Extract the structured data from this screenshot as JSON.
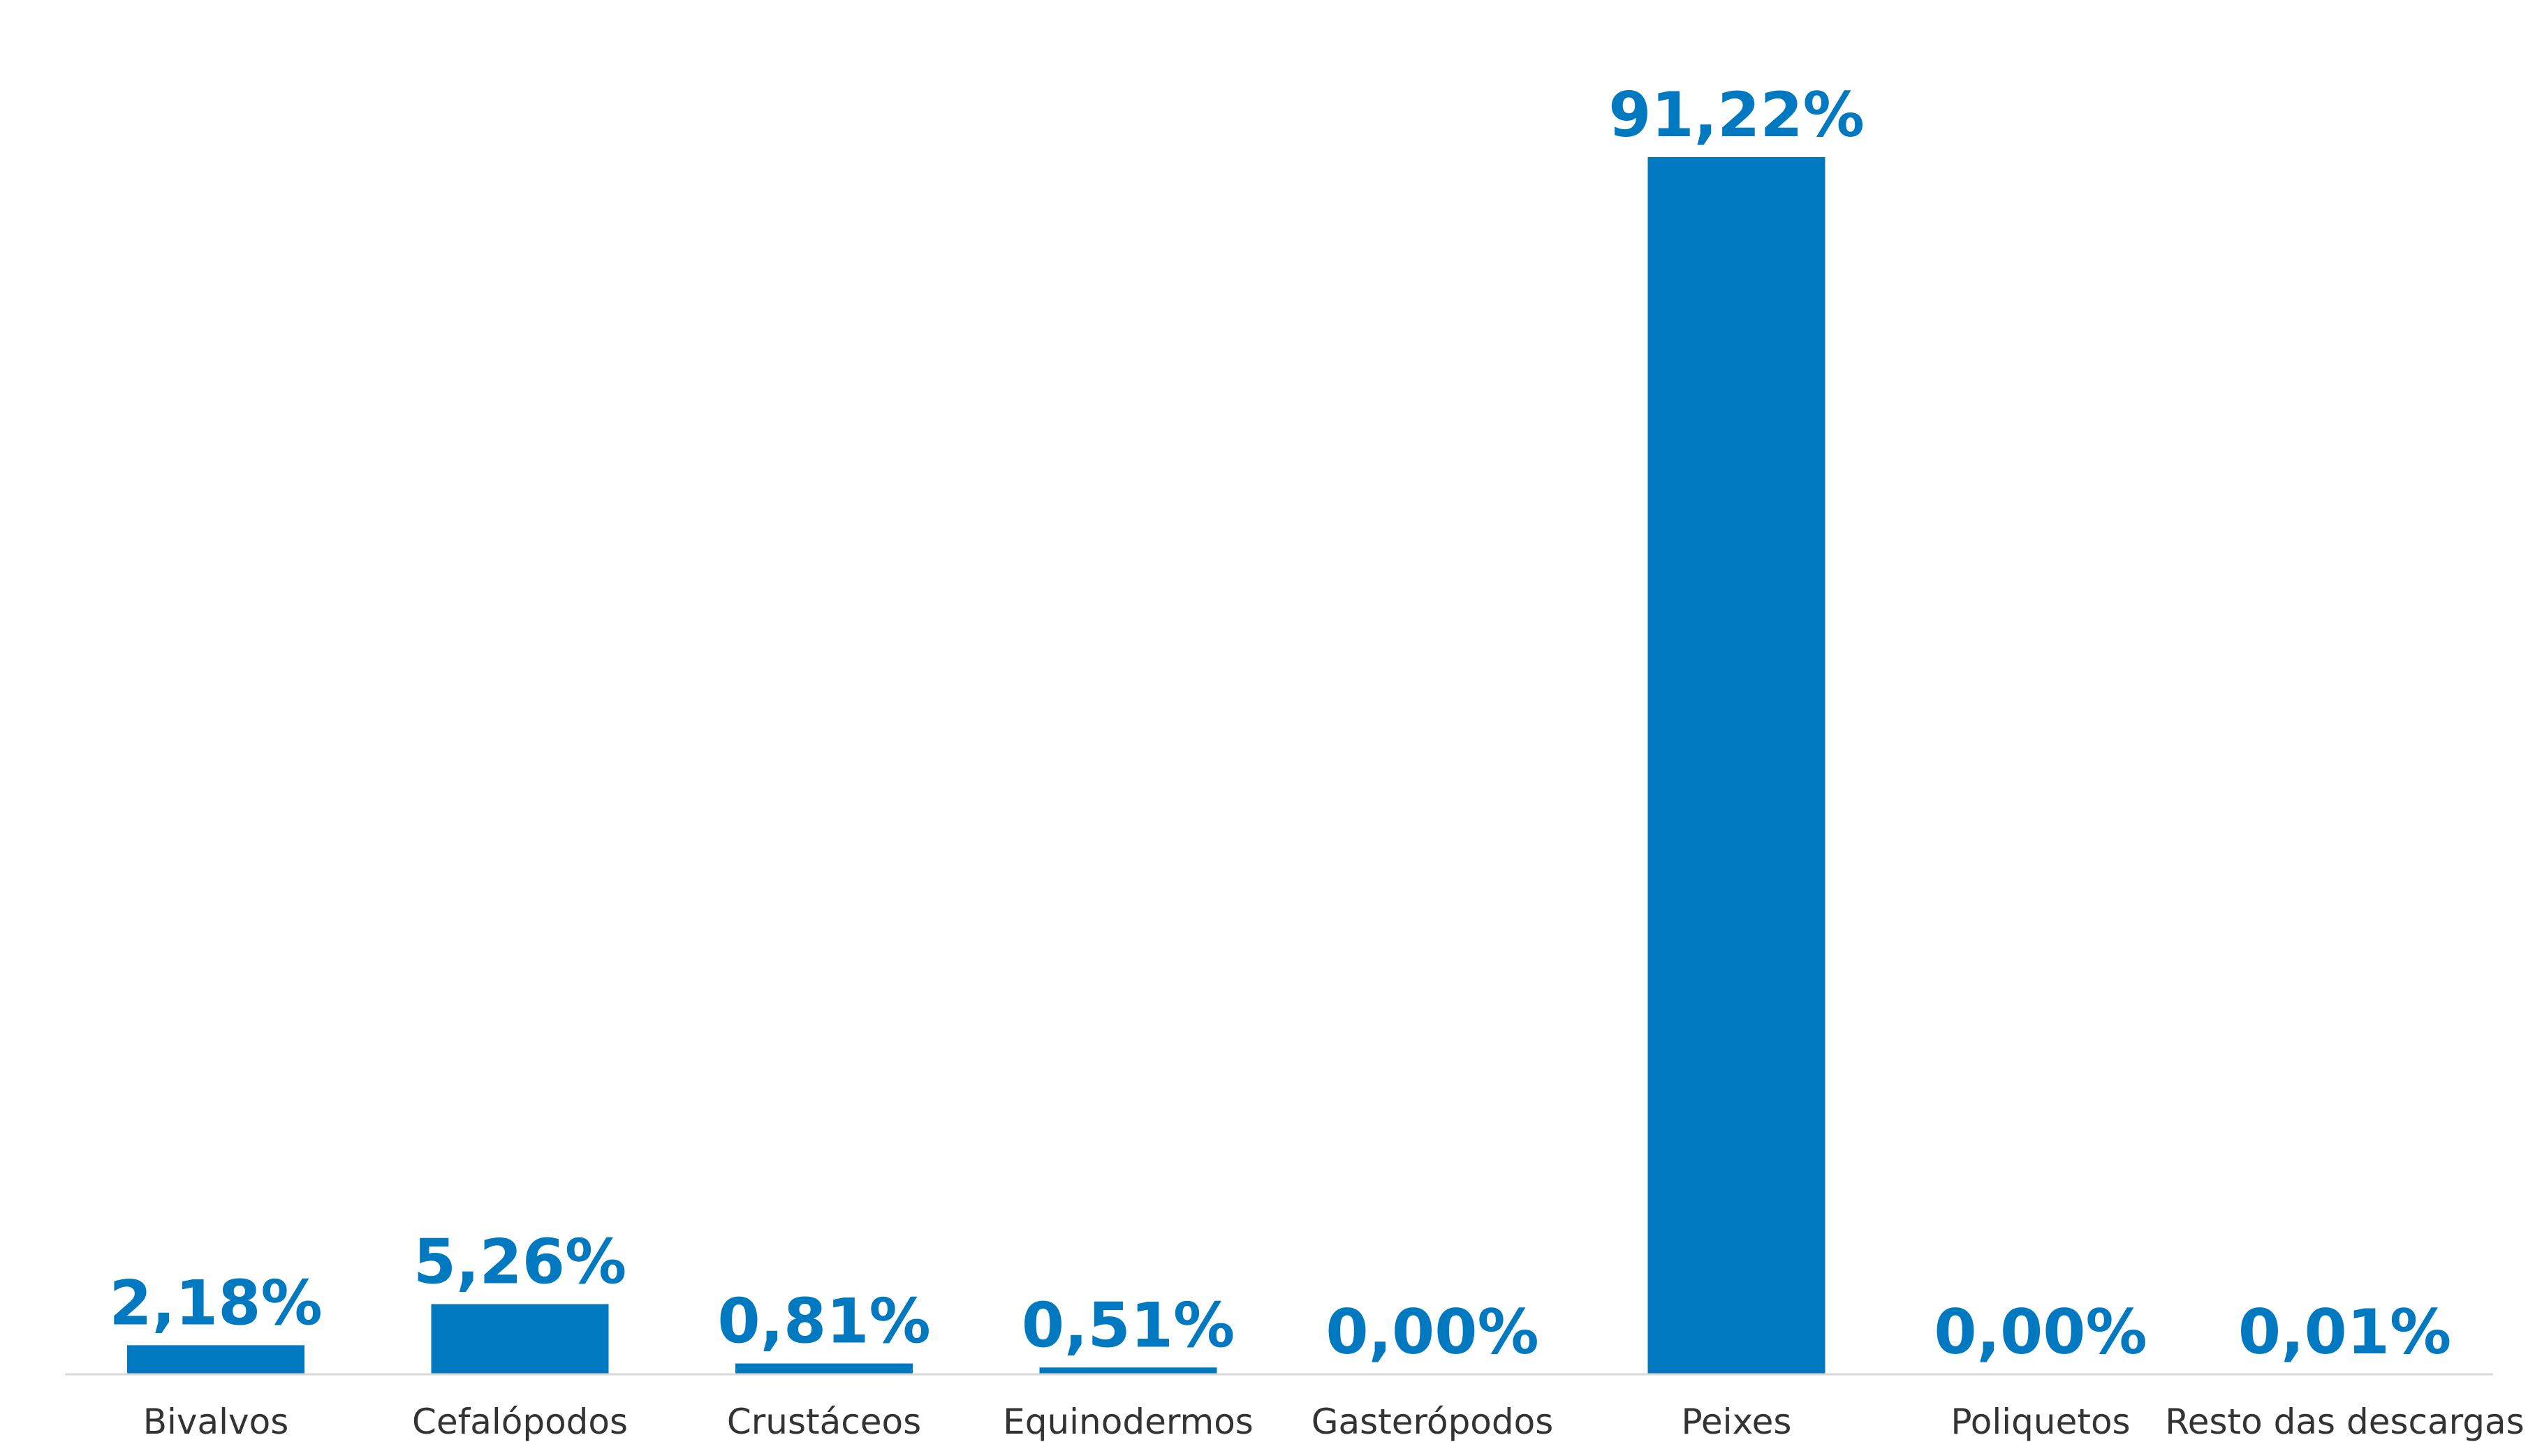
{
  "chart_data": {
    "type": "bar",
    "categories": [
      "Bivalvos",
      "Cefalópodos",
      "Crustáceos",
      "Equinodermos",
      "Gasterópodos",
      "Peixes",
      "Poliquetos",
      "Resto das descargas"
    ],
    "values": [
      2.18,
      5.26,
      0.81,
      0.51,
      0.0,
      91.22,
      0.0,
      0.01
    ],
    "data_labels": [
      "2,18%",
      "5,26%",
      "0,81%",
      "0,51%",
      "0,00%",
      "91,22%",
      "0,00%",
      "0,01%"
    ],
    "title": "",
    "xlabel": "",
    "ylabel": "",
    "ylim": [
      0,
      91.22
    ],
    "grid": false,
    "legend": "none",
    "bar_color": "#0079C1",
    "axis_color": "#D9D9D9"
  }
}
